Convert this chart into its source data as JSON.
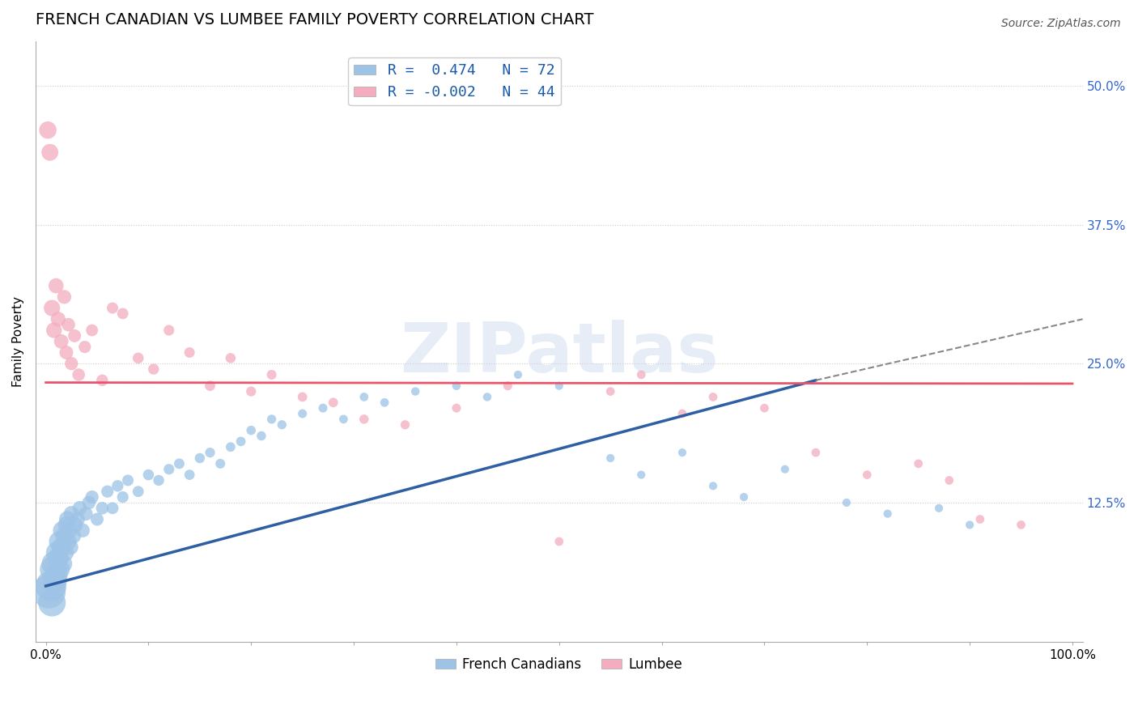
{
  "title": "FRENCH CANADIAN VS LUMBEE FAMILY POVERTY CORRELATION CHART",
  "source_text": "Source: ZipAtlas.com",
  "ylabel": "Family Poverty",
  "x_ticks": [
    0.0,
    10.0,
    20.0,
    30.0,
    40.0,
    50.0,
    60.0,
    70.0,
    80.0,
    90.0,
    100.0
  ],
  "x_tick_labels": [
    "0.0%",
    "",
    "",
    "",
    "",
    "",
    "",
    "",
    "",
    "",
    "100.0%"
  ],
  "y_ticks": [
    0.0,
    12.5,
    25.0,
    37.5,
    50.0
  ],
  "y_tick_labels": [
    "",
    "12.5%",
    "25.0%",
    "37.5%",
    "50.0%"
  ],
  "xlim": [
    -1,
    101
  ],
  "ylim": [
    0,
    54
  ],
  "blue_color": "#9dc3e6",
  "pink_color": "#f4acbe",
  "blue_line_color": "#2e5fa3",
  "pink_line_color": "#e8546a",
  "blue_R": 0.474,
  "blue_N": 72,
  "pink_R": -0.002,
  "pink_N": 44,
  "legend_label_blue": "French Canadians",
  "legend_label_pink": "Lumbee",
  "watermark": "ZIPatlas",
  "blue_scatter_x": [
    0.3,
    0.5,
    0.6,
    0.7,
    0.8,
    0.9,
    1.0,
    1.1,
    1.2,
    1.3,
    1.4,
    1.5,
    1.6,
    1.7,
    1.8,
    1.9,
    2.0,
    2.1,
    2.2,
    2.3,
    2.4,
    2.5,
    2.7,
    2.9,
    3.1,
    3.3,
    3.6,
    3.9,
    4.2,
    4.5,
    5.0,
    5.5,
    6.0,
    6.5,
    7.0,
    7.5,
    8.0,
    9.0,
    10.0,
    11.0,
    12.0,
    13.0,
    14.0,
    15.0,
    16.0,
    17.0,
    18.0,
    19.0,
    20.0,
    21.0,
    22.0,
    23.0,
    25.0,
    27.0,
    29.0,
    31.0,
    33.0,
    36.0,
    40.0,
    43.0,
    46.0,
    50.0,
    55.0,
    58.0,
    62.0,
    65.0,
    68.0,
    72.0,
    78.0,
    82.0,
    87.0,
    90.0
  ],
  "blue_scatter_y": [
    4.5,
    5.0,
    3.5,
    6.5,
    7.0,
    5.5,
    6.0,
    8.0,
    7.5,
    9.0,
    6.5,
    8.5,
    10.0,
    7.0,
    9.5,
    8.0,
    10.5,
    11.0,
    9.0,
    10.0,
    8.5,
    11.5,
    9.5,
    10.5,
    11.0,
    12.0,
    10.0,
    11.5,
    12.5,
    13.0,
    11.0,
    12.0,
    13.5,
    12.0,
    14.0,
    13.0,
    14.5,
    13.5,
    15.0,
    14.5,
    15.5,
    16.0,
    15.0,
    16.5,
    17.0,
    16.0,
    17.5,
    18.0,
    19.0,
    18.5,
    20.0,
    19.5,
    20.5,
    21.0,
    20.0,
    22.0,
    21.5,
    22.5,
    23.0,
    22.0,
    24.0,
    23.0,
    16.5,
    15.0,
    17.0,
    14.0,
    13.0,
    15.5,
    12.5,
    11.5,
    12.0,
    10.5
  ],
  "blue_scatter_sizes": [
    300,
    250,
    200,
    180,
    160,
    150,
    140,
    130,
    120,
    110,
    100,
    95,
    90,
    85,
    80,
    78,
    75,
    72,
    70,
    68,
    65,
    63,
    60,
    58,
    56,
    54,
    52,
    50,
    48,
    46,
    44,
    42,
    40,
    38,
    36,
    35,
    34,
    33,
    32,
    31,
    30,
    29,
    28,
    27,
    26,
    25,
    24,
    24,
    23,
    23,
    22,
    22,
    21,
    21,
    20,
    20,
    20,
    19,
    19,
    19,
    18,
    18,
    18,
    18,
    18,
    18,
    18,
    18,
    18,
    18,
    18,
    18
  ],
  "pink_scatter_x": [
    0.2,
    0.4,
    0.6,
    0.8,
    1.0,
    1.2,
    1.5,
    1.8,
    2.0,
    2.2,
    2.5,
    2.8,
    3.2,
    3.8,
    4.5,
    5.5,
    6.5,
    7.5,
    9.0,
    10.5,
    12.0,
    14.0,
    16.0,
    18.0,
    20.0,
    22.0,
    25.0,
    28.0,
    31.0,
    35.0,
    40.0,
    45.0,
    50.0,
    55.0,
    58.0,
    62.0,
    65.0,
    70.0,
    75.0,
    80.0,
    85.0,
    88.0,
    91.0,
    95.0
  ],
  "pink_scatter_y": [
    46.0,
    44.0,
    30.0,
    28.0,
    32.0,
    29.0,
    27.0,
    31.0,
    26.0,
    28.5,
    25.0,
    27.5,
    24.0,
    26.5,
    28.0,
    23.5,
    30.0,
    29.5,
    25.5,
    24.5,
    28.0,
    26.0,
    23.0,
    25.5,
    22.5,
    24.0,
    22.0,
    21.5,
    20.0,
    19.5,
    21.0,
    23.0,
    9.0,
    22.5,
    24.0,
    20.5,
    22.0,
    21.0,
    17.0,
    15.0,
    16.0,
    14.5,
    11.0,
    10.5
  ],
  "pink_scatter_sizes": [
    80,
    75,
    70,
    65,
    60,
    58,
    55,
    52,
    50,
    48,
    46,
    44,
    42,
    40,
    38,
    36,
    34,
    33,
    32,
    31,
    30,
    29,
    28,
    27,
    26,
    25,
    24,
    24,
    23,
    22,
    21,
    21,
    20,
    20,
    20,
    20,
    20,
    20,
    20,
    20,
    20,
    20,
    20,
    20
  ],
  "blue_line_x0": 0,
  "blue_line_x1": 75,
  "blue_line_y0": 5.0,
  "blue_line_y1": 23.5,
  "blue_dash_x0": 75,
  "blue_dash_x1": 101,
  "blue_dash_y0": 23.5,
  "blue_dash_y1": 29.0,
  "pink_line_x0": 0,
  "pink_line_x1": 100,
  "pink_line_y0": 23.3,
  "pink_line_y1": 23.2,
  "title_fontsize": 14,
  "axis_label_fontsize": 11,
  "tick_fontsize": 11,
  "source_fontsize": 10
}
